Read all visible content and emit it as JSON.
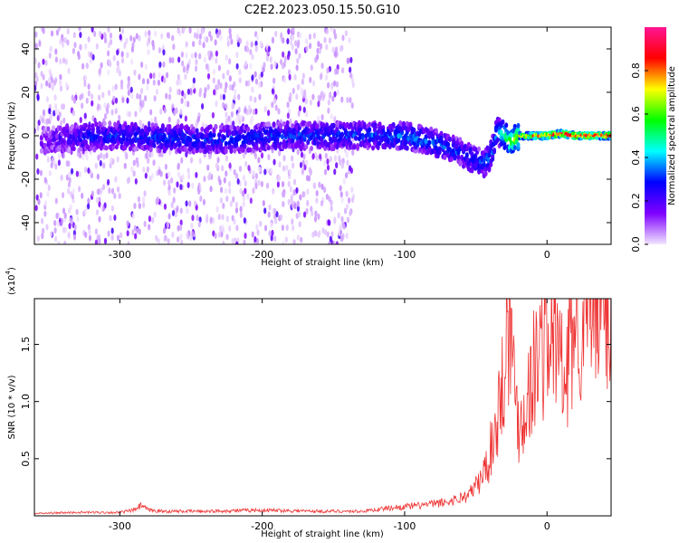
{
  "page": {
    "title": "C2E2.2023.050.15.50.G10"
  },
  "chart_data": [
    {
      "type": "heatmap",
      "xlabel": "Height of straight line (km)",
      "ylabel": "Frequency (Hz)",
      "xlim": [
        -360,
        45
      ],
      "ylim": [
        -50,
        50
      ],
      "xticks": [
        -300,
        -200,
        -100,
        0
      ],
      "xtick_labels": [
        "-300",
        "-200",
        "-100",
        "0"
      ],
      "yticks": [
        -40,
        -20,
        0,
        20,
        40
      ],
      "ytick_labels": [
        "-40",
        "-20",
        "0",
        "20",
        "40"
      ],
      "colorbar": {
        "label": "Normalized spectral amplitude",
        "range": [
          0.0,
          1.0
        ],
        "ticks": [
          0.0,
          0.2,
          0.4,
          0.6,
          0.8
        ],
        "tick_labels": [
          "0.0",
          "0.2",
          "0.4",
          "0.6",
          "0.8"
        ],
        "colormap": [
          "#f2e6ff",
          "#8000ff",
          "#0000ff",
          "#00ffff",
          "#00ff00",
          "#ffff00",
          "#ff0000",
          "#ff1493"
        ]
      },
      "background_noise": {
        "x_range": [
          -360,
          -135
        ],
        "freq_range": [
          -50,
          50
        ]
      },
      "ridge": {
        "x": [
          -355,
          -330,
          -300,
          -270,
          -240,
          -210,
          -180,
          -150,
          -120,
          -100,
          -80,
          -60,
          -45,
          -40,
          -35,
          -30,
          -25,
          -20,
          -10,
          0,
          10,
          20,
          30,
          45
        ],
        "freq": [
          -2,
          -1,
          0,
          -1,
          -2,
          -1,
          0,
          0,
          0,
          0,
          -3,
          -8,
          -13,
          -10,
          2,
          0,
          -3,
          0,
          0,
          0,
          1,
          0,
          0,
          0
        ],
        "amplitude": [
          0.15,
          0.25,
          0.3,
          0.3,
          0.3,
          0.3,
          0.3,
          0.3,
          0.32,
          0.35,
          0.35,
          0.3,
          0.3,
          0.35,
          0.4,
          0.5,
          0.6,
          0.7,
          0.8,
          0.9,
          0.9,
          0.9,
          0.9,
          0.9
        ]
      }
    },
    {
      "type": "line",
      "xlabel": "Height of straight line (km)",
      "ylabel": "SNR (10 * v/v)",
      "multiplier": "(x10",
      "multiplier_exp": "4",
      "multiplier_close": ")",
      "xlim": [
        -360,
        45
      ],
      "ylim": [
        0,
        1.9
      ],
      "xticks": [
        -300,
        -200,
        -100,
        0
      ],
      "xtick_labels": [
        "-300",
        "-200",
        "-100",
        "0"
      ],
      "yticks": [
        0.5,
        1.0,
        1.5
      ],
      "ytick_labels": [
        "0.5",
        "1.0",
        "1.5"
      ],
      "color": "#ee3333",
      "series": [
        {
          "x": [
            -360,
            -330,
            -300,
            -290,
            -285,
            -280,
            -270,
            -240,
            -200,
            -160,
            -130,
            -110,
            -90,
            -70,
            -55,
            -45,
            -40,
            -35,
            -30,
            -28,
            -25,
            -22,
            -20,
            -15,
            -10,
            -5,
            0,
            5,
            10,
            13,
            15,
            20,
            30,
            45
          ],
          "y": [
            0.02,
            0.03,
            0.03,
            0.05,
            0.09,
            0.05,
            0.04,
            0.04,
            0.05,
            0.04,
            0.04,
            0.07,
            0.09,
            0.12,
            0.18,
            0.35,
            0.55,
            0.85,
            1.3,
            1.8,
            1.5,
            1.05,
            0.8,
            0.95,
            1.25,
            1.45,
            1.55,
            1.55,
            1.4,
            0.9,
            1.5,
            1.7,
            1.8,
            1.88
          ]
        }
      ]
    }
  ]
}
